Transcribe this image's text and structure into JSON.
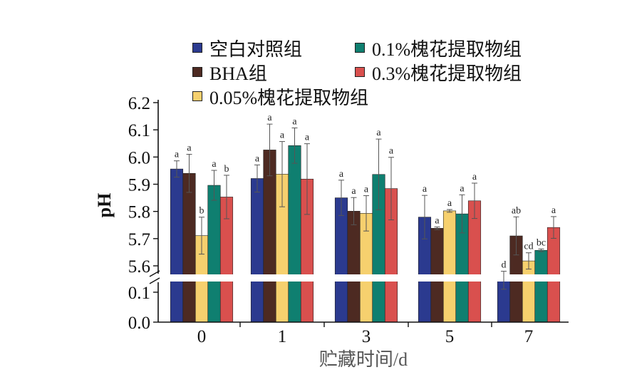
{
  "chart_data": {
    "type": "bar",
    "xlabel": "贮藏时间/d",
    "ylabel": "pH",
    "categories": [
      "0",
      "1",
      "3",
      "5",
      "7"
    ],
    "y_ticks_upper": [
      "5.6",
      "5.7",
      "5.8",
      "5.9",
      "6.0",
      "6.1",
      "6.2"
    ],
    "y_ticks_lower": [
      "0.0",
      "0.1"
    ],
    "axis_break": true,
    "ylim_upper": [
      5.55,
      6.2
    ],
    "ylim_lower": [
      0.0,
      0.15
    ],
    "legend_position": "top",
    "series": [
      {
        "name": "空白对照组",
        "color": "#2b3a8f",
        "values": [
          5.956,
          5.921,
          5.85,
          5.779,
          0.14
        ],
        "errors": [
          0.03,
          0.05,
          0.065,
          0.08,
          0.03
        ],
        "labels": [
          "a",
          "a",
          "a",
          "a",
          "d"
        ]
      },
      {
        "name": "BHA组",
        "color": "#4d2a22",
        "values": [
          5.94,
          6.026,
          5.801,
          5.738,
          5.71
        ],
        "errors": [
          0.07,
          0.095,
          0.05,
          0.005,
          0.07
        ],
        "labels": [
          "a",
          "a",
          "a",
          "a",
          "ab"
        ]
      },
      {
        "name": "0.05%槐花提取物组",
        "color": "#f6d06e",
        "values": [
          5.711,
          5.937,
          5.793,
          5.802,
          5.618
        ],
        "errors": [
          0.068,
          0.12,
          0.065,
          0.005,
          0.03
        ],
        "labels": [
          "b",
          "a",
          "a",
          "a",
          "cd"
        ]
      },
      {
        "name": "0.1%槐花提取物组",
        "color": "#0f7f70",
        "values": [
          5.896,
          6.042,
          5.936,
          5.791,
          5.657
        ],
        "errors": [
          0.055,
          0.065,
          0.13,
          0.07,
          0.005
        ],
        "labels": [
          "a",
          "a",
          "a",
          "a",
          "bc"
        ]
      },
      {
        "name": "0.3%槐花提取物组",
        "color": "#d9504e",
        "values": [
          5.853,
          5.919,
          5.884,
          5.839,
          5.741
        ],
        "errors": [
          0.08,
          0.13,
          0.115,
          0.065,
          0.04
        ],
        "labels": [
          "b",
          "a",
          "a",
          "a",
          "a"
        ]
      }
    ]
  }
}
